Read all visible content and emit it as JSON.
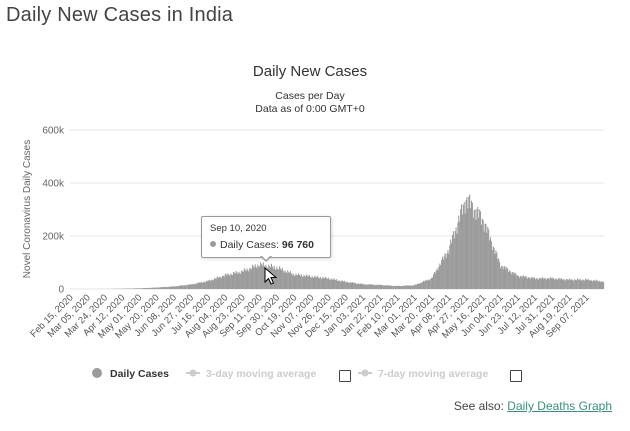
{
  "page": {
    "title": "Daily New Cases in India"
  },
  "see_also": {
    "prefix": "See also:",
    "link_label": "Daily Deaths Graph"
  },
  "tooltip": {
    "date": "Sep 10, 2020",
    "series_label": "Daily Cases:",
    "value_text": "96 760"
  },
  "colors": {
    "bar": "#9b9b9b",
    "grid": "#e6e6e6",
    "link": "#3a8f7a"
  },
  "chart_data": {
    "type": "bar",
    "title": "Daily New Cases",
    "subtitle_line1": "Cases per Day",
    "subtitle_line2": "Data as of 0:00 GMT+0",
    "ylabel": "Novel Coronavirus Daily Cases",
    "ylim": [
      0,
      600000
    ],
    "y_ticks": [
      0,
      200000,
      400000,
      600000
    ],
    "y_tick_labels": [
      "0",
      "200k",
      "400k",
      "600k"
    ],
    "x_tick_labels": [
      "Feb 15, 2020",
      "Mar 05, 2020",
      "Mar 24, 2020",
      "Apr 12, 2020",
      "May 01, 2020",
      "May 20, 2020",
      "Jun 08, 2020",
      "Jun 27, 2020",
      "Jul 16, 2020",
      "Aug 04, 2020",
      "Aug 23, 2020",
      "Sep 11, 2020",
      "Sep 30, 2020",
      "Oct 19, 2020",
      "Nov 07, 2020",
      "Nov 26, 2020",
      "Dec 15, 2020",
      "Jan 03, 2021",
      "Jan 22, 2021",
      "Feb 10, 2021",
      "Mar 01, 2021",
      "Mar 20, 2021",
      "Apr 08, 2021",
      "Apr 27, 2021",
      "May 16, 2021",
      "Jun 04, 2021",
      "Jun 23, 2021",
      "Jul 12, 2021",
      "Jul 31, 2021",
      "Aug 19, 2021",
      "Sep 07, 2021"
    ],
    "series_name": "Daily Cases",
    "values_step_days": 19,
    "values": [
      0,
      0,
      100,
      1200,
      2500,
      5500,
      9500,
      17000,
      30000,
      52000,
      66000,
      92000,
      80000,
      55000,
      47000,
      40000,
      27000,
      18000,
      15000,
      11000,
      14000,
      40000,
      150000,
      340000,
      260000,
      90000,
      50000,
      40000,
      40000,
      35000,
      35000,
      28000
    ],
    "legend": [
      {
        "label": "Daily Cases",
        "active": true
      },
      {
        "label": "3-day moving average",
        "active": false
      },
      {
        "label": "7-day moving average",
        "active": false
      }
    ]
  }
}
